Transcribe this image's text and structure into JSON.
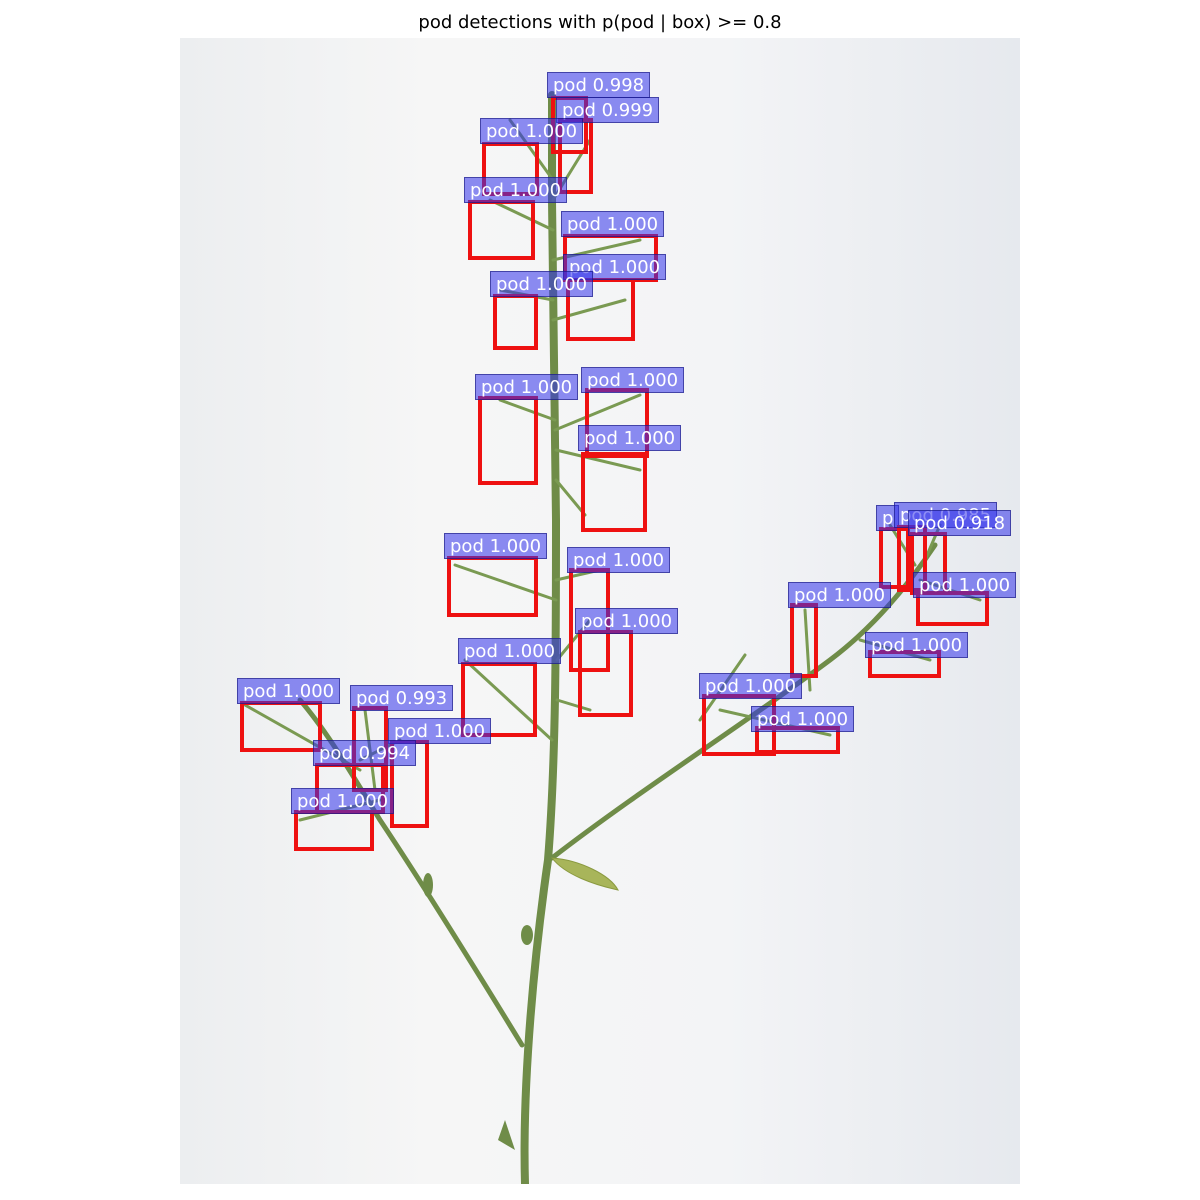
{
  "title": "pod detections with p(pod | box) >= 0.8",
  "colors": {
    "box_border": "#ee1111",
    "label_fill": "#3232eb",
    "label_text": "#ffffff",
    "stem": "#6f8c48",
    "background": "#f3f4f6"
  },
  "detections": [
    {
      "label": "pod 0.998"
    },
    {
      "label": "pod 0.999"
    },
    {
      "label": "pod 1.000"
    },
    {
      "label": "pod 1.000"
    },
    {
      "label": "pod 1.000"
    },
    {
      "label": "pod 1.000"
    },
    {
      "label": "pod 1.000"
    },
    {
      "label": "pod 1.000"
    },
    {
      "label": "pod 1.000"
    },
    {
      "label": "pod 1.000"
    },
    {
      "label": "pod 1.000"
    },
    {
      "label": "pod 1.000"
    },
    {
      "label": "pod 1.000"
    },
    {
      "label": "pod 1.000"
    },
    {
      "label": "pod 1.000"
    },
    {
      "label": "pod 0.993"
    },
    {
      "label": "pod 1.000"
    },
    {
      "label": "pod 0.994"
    },
    {
      "label": "pod 1.000"
    },
    {
      "label": "p"
    },
    {
      "label": "pod 0.985"
    },
    {
      "label": "pod 0.918"
    },
    {
      "label": "pod 1.000"
    },
    {
      "label": "pod 1.000"
    },
    {
      "label": "pod 1.000"
    },
    {
      "label": "pod 1.000"
    },
    {
      "label": "pod 1.000"
    }
  ]
}
